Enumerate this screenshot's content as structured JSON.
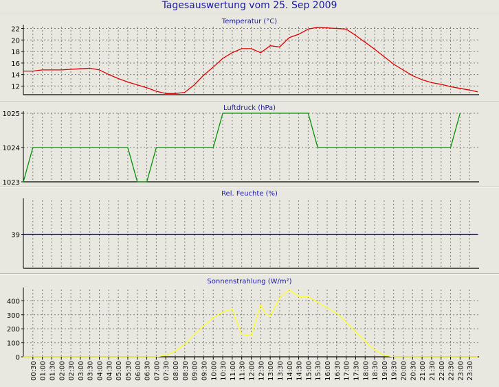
{
  "title": "Tagesauswertung vom 25. Sep 2009",
  "time_labels": [
    "00:30",
    "01:00",
    "01:30",
    "02:00",
    "02:30",
    "03:00",
    "03:30",
    "04:00",
    "04:30",
    "05:00",
    "05:30",
    "06:00",
    "06:30",
    "07:00",
    "07:30",
    "08:00",
    "08:30",
    "09:00",
    "09:30",
    "10:00",
    "10:30",
    "11:00",
    "11:30",
    "12:00",
    "12:30",
    "13:00",
    "13:30",
    "14:00",
    "14:30",
    "15:00",
    "15:30",
    "16:00",
    "16:30",
    "17:00",
    "17:30",
    "18:00",
    "18:30",
    "19:00",
    "19:30",
    "20:00",
    "20:30",
    "21:00",
    "21:30",
    "22:00",
    "22:30",
    "23:00",
    "23:30"
  ],
  "chart_data": [
    {
      "type": "line",
      "title": "Temperatur (°C)",
      "ylim": [
        10.5,
        22.3
      ],
      "yticks": [
        12,
        14,
        16,
        18,
        20,
        22
      ],
      "color": "#e00000",
      "x": [
        "00:00",
        "00:30",
        "01:00",
        "02:00",
        "03:00",
        "03:30",
        "04:00",
        "04:30",
        "05:00",
        "05:30",
        "06:00",
        "06:30",
        "07:00",
        "07:30",
        "08:00",
        "08:30",
        "09:00",
        "09:30",
        "10:00",
        "10:30",
        "11:00",
        "11:30",
        "12:00",
        "12:30",
        "13:00",
        "13:30",
        "14:00",
        "14:30",
        "15:00",
        "15:30",
        "16:00",
        "16:30",
        "17:00",
        "17:30",
        "18:00",
        "18:30",
        "19:00",
        "19:30",
        "20:00",
        "20:30",
        "21:00",
        "21:30",
        "22:00",
        "22:30",
        "23:00",
        "23:30",
        "23:55"
      ],
      "values": [
        14.6,
        14.6,
        14.8,
        14.8,
        15.0,
        15.1,
        14.8,
        14.0,
        13.3,
        12.7,
        12.2,
        11.7,
        11.1,
        10.7,
        10.7,
        10.9,
        12.2,
        13.9,
        15.3,
        16.8,
        17.8,
        18.5,
        18.5,
        17.8,
        19.0,
        18.8,
        20.4,
        21.0,
        21.9,
        22.2,
        22.1,
        22.0,
        21.9,
        20.8,
        19.6,
        18.4,
        17.1,
        15.8,
        14.8,
        13.8,
        13.1,
        12.6,
        12.3,
        11.9,
        11.6,
        11.3,
        11.0
      ]
    },
    {
      "type": "line",
      "title": "Luftdruck (hPa)",
      "ylim": [
        1023,
        1025
      ],
      "yticks": [
        1023,
        1024,
        1025
      ],
      "color": "#009000",
      "x": [
        "00:00",
        "00:30",
        "05:30",
        "06:00",
        "06:30",
        "07:00",
        "10:00",
        "10:30",
        "15:00",
        "15:30",
        "22:30",
        "23:00"
      ],
      "values": [
        1023,
        1024,
        1024,
        1023,
        1023,
        1024,
        1024,
        1025,
        1025,
        1024,
        1024,
        1025
      ]
    },
    {
      "type": "line",
      "title": "Rel. Feuchte (%)",
      "ylim": [
        38,
        40
      ],
      "yticks": [
        39
      ],
      "color": "#0000d0",
      "x": [
        "00:00",
        "23:55"
      ],
      "values": [
        39,
        39
      ]
    },
    {
      "type": "line",
      "title": "Sonnenstrahlung (W/m²)",
      "ylim": [
        0,
        480
      ],
      "yticks": [
        0,
        100,
        200,
        300,
        400
      ],
      "color": "#ffff20",
      "x": [
        "00:00",
        "06:30",
        "07:00",
        "07:30",
        "08:00",
        "08:30",
        "09:00",
        "09:30",
        "10:00",
        "10:30",
        "11:00",
        "11:30",
        "12:00",
        "12:15",
        "12:30",
        "12:45",
        "13:00",
        "13:30",
        "14:00",
        "14:30",
        "15:00",
        "15:30",
        "16:00",
        "16:30",
        "17:00",
        "17:30",
        "18:00",
        "18:30",
        "19:00",
        "19:30",
        "20:00",
        "23:55"
      ],
      "values": [
        0,
        0,
        0,
        10,
        40,
        90,
        160,
        220,
        280,
        320,
        340,
        160,
        150,
        260,
        370,
        310,
        290,
        420,
        480,
        430,
        430,
        390,
        350,
        310,
        250,
        180,
        110,
        50,
        10,
        0,
        0,
        0
      ]
    }
  ]
}
